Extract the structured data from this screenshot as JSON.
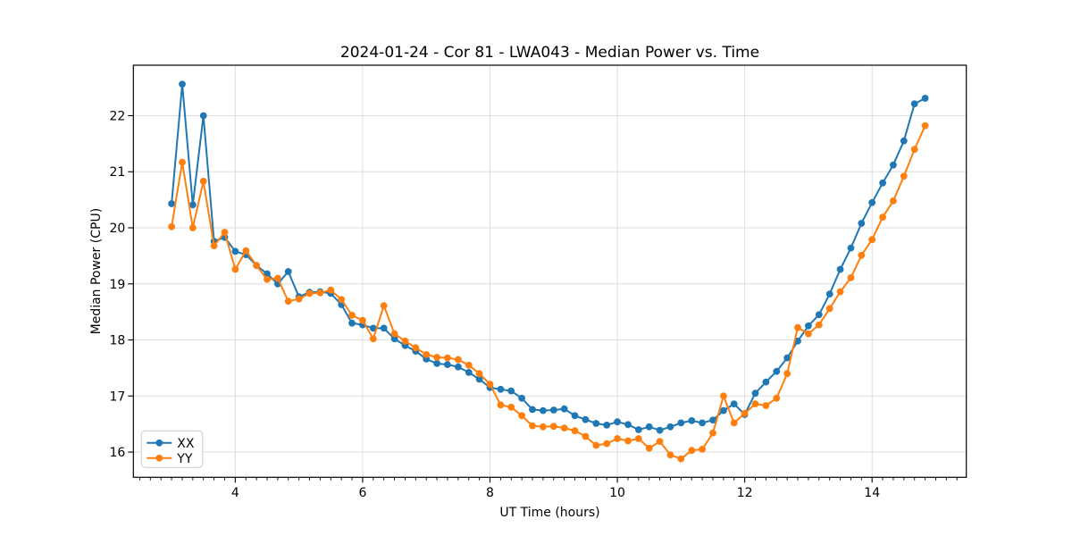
{
  "chart_data": {
    "type": "line",
    "title": "2024-01-24 - Cor 81 - LWA043 - Median Power vs. Time",
    "xlabel": "UT Time (hours)",
    "ylabel": "Median Power (CPU)",
    "xlim": [
      2.4,
      15.48
    ],
    "ylim": [
      15.55,
      22.9
    ],
    "xticks": [
      4,
      6,
      8,
      10,
      12,
      14
    ],
    "yticks": [
      16,
      17,
      18,
      19,
      20,
      21,
      22
    ],
    "x_minor_step": 0.1666667,
    "grid": true,
    "grid_color": "#dedede",
    "legend_position": "lower left",
    "background_color": "#ffffff",
    "x": [
      3.0,
      3.167,
      3.333,
      3.5,
      3.667,
      3.833,
      4.0,
      4.167,
      4.333,
      4.5,
      4.667,
      4.833,
      5.0,
      5.167,
      5.333,
      5.5,
      5.667,
      5.833,
      6.0,
      6.167,
      6.333,
      6.5,
      6.667,
      6.833,
      7.0,
      7.167,
      7.333,
      7.5,
      7.667,
      7.833,
      8.0,
      8.167,
      8.333,
      8.5,
      8.667,
      8.833,
      9.0,
      9.167,
      9.333,
      9.5,
      9.667,
      9.833,
      10.0,
      10.167,
      10.333,
      10.5,
      10.667,
      10.833,
      11.0,
      11.167,
      11.333,
      11.5,
      11.667,
      11.833,
      12.0,
      12.167,
      12.333,
      12.5,
      12.667,
      12.833,
      13.0,
      13.167,
      13.333,
      13.5,
      13.667,
      13.833,
      14.0,
      14.167,
      14.333,
      14.5,
      14.667,
      14.833
    ],
    "series": [
      {
        "name": "XX",
        "color": "#1f77b4",
        "values": [
          20.43,
          22.56,
          20.41,
          22.0,
          19.76,
          19.83,
          19.58,
          19.52,
          19.33,
          19.18,
          19.0,
          19.22,
          18.77,
          18.85,
          18.86,
          18.83,
          18.63,
          18.3,
          18.27,
          18.21,
          18.21,
          18.02,
          17.9,
          17.8,
          17.66,
          17.58,
          17.56,
          17.52,
          17.42,
          17.3,
          17.15,
          17.12,
          17.09,
          16.96,
          16.76,
          16.74,
          16.75,
          16.77,
          16.65,
          16.58,
          16.51,
          16.48,
          16.54,
          16.49,
          16.4,
          16.45,
          16.39,
          16.45,
          16.52,
          16.56,
          16.52,
          16.57,
          16.74,
          16.86,
          16.67,
          17.05,
          17.25,
          17.44,
          17.68,
          17.98,
          18.25,
          18.45,
          18.82,
          19.26,
          19.64,
          20.08,
          20.45,
          20.8,
          21.12,
          21.55,
          22.21,
          22.31
        ]
      },
      {
        "name": "YY",
        "color": "#ff7f0e",
        "values": [
          20.02,
          21.17,
          20.0,
          20.83,
          19.68,
          19.92,
          19.26,
          19.59,
          19.33,
          19.08,
          19.1,
          18.69,
          18.73,
          18.83,
          18.84,
          18.89,
          18.72,
          18.44,
          18.35,
          18.02,
          18.61,
          18.11,
          17.98,
          17.86,
          17.74,
          17.69,
          17.68,
          17.65,
          17.55,
          17.4,
          17.21,
          16.84,
          16.8,
          16.65,
          16.47,
          16.45,
          16.46,
          16.43,
          16.38,
          16.28,
          16.12,
          16.15,
          16.24,
          16.2,
          16.24,
          16.07,
          16.19,
          15.95,
          15.88,
          16.03,
          16.05,
          16.34,
          17.0,
          16.52,
          16.69,
          16.86,
          16.83,
          16.96,
          17.4,
          18.22,
          18.11,
          18.27,
          18.56,
          18.86,
          19.11,
          19.51,
          19.79,
          20.19,
          20.48,
          20.92,
          21.4,
          21.82
        ]
      }
    ]
  }
}
